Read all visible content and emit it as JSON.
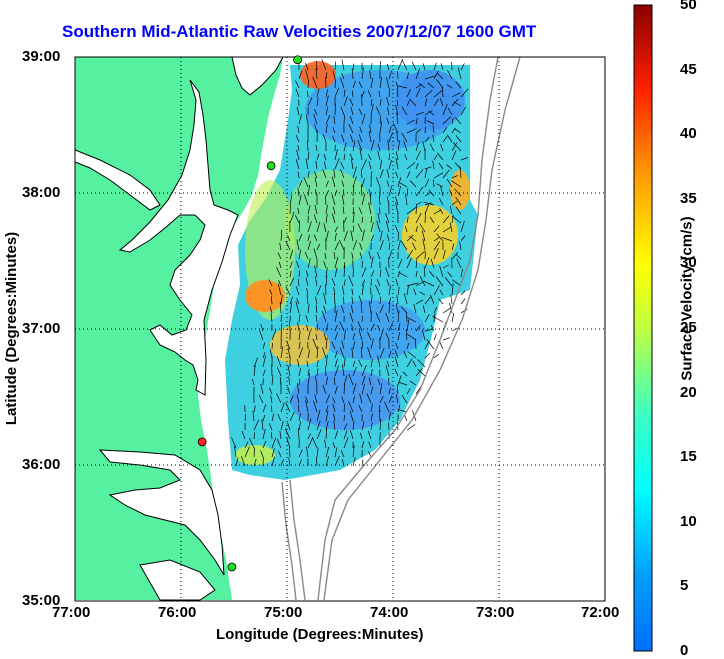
{
  "title": "Southern Mid-Atlantic Raw Velocities 2007/12/07 1600 GMT",
  "map": {
    "xlabel": "Longitude (Degrees:Minutes)",
    "ylabel": "Latitude (Degrees:Minutes)",
    "x_ticks": [
      "77:00",
      "76:00",
      "75:00",
      "74:00",
      "73:00",
      "72:00"
    ],
    "y_ticks": [
      "39:00",
      "38:00",
      "37:00",
      "36:00",
      "35:00"
    ],
    "lon_range": [
      -77,
      -72
    ],
    "lat_range": [
      35,
      39
    ],
    "grid": "dotted"
  },
  "colorbar": {
    "label": "Surface Velocity (cm/s)",
    "ticks": [
      "50",
      "45",
      "40",
      "35",
      "30",
      "25",
      "20",
      "15",
      "10",
      "5",
      "0"
    ],
    "range": [
      0,
      50
    ],
    "colormap": "jet"
  },
  "stations": [
    {
      "lon": -74.9,
      "lat": 38.98,
      "color": "#22dd22"
    },
    {
      "lon": -75.15,
      "lat": 38.2,
      "color": "#22dd22"
    },
    {
      "lon": -75.8,
      "lat": 36.17,
      "color": "#ff2222"
    },
    {
      "lon": -75.52,
      "lat": 35.25,
      "color": "#22dd22"
    }
  ],
  "colors": {
    "land": "#55f0a0",
    "coast": "#000000",
    "bathymetry": "#888888",
    "title": "#0000ff"
  }
}
